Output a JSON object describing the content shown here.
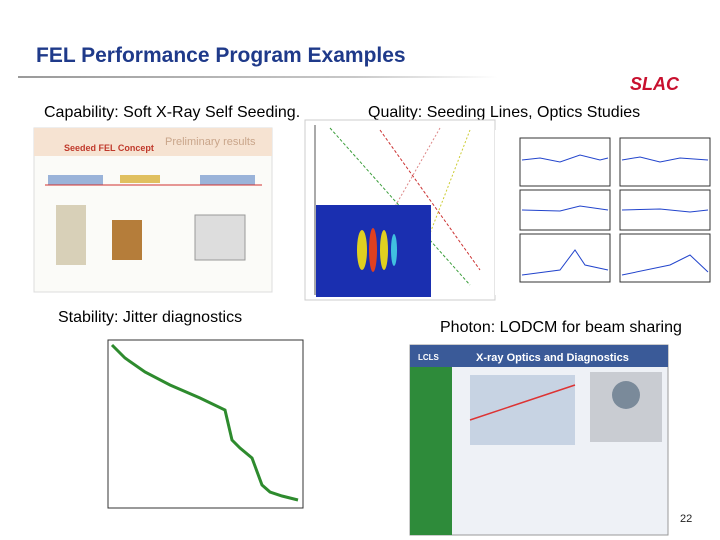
{
  "slide": {
    "title": "FEL Performance Program Examples",
    "logo": "SLAC",
    "captions": [
      "Capability: Soft X-Ray Self Seeding.",
      "Quality: Seeding Lines, Optics Studies",
      "Stability: Jitter diagnostics",
      "Photon: LODCM for beam sharing"
    ],
    "figure_texts": [
      "Seeded FEL Concept",
      "Preliminary results",
      "X-ray Optics and Diagnostics",
      "LCLS"
    ],
    "page_number": "22"
  }
}
